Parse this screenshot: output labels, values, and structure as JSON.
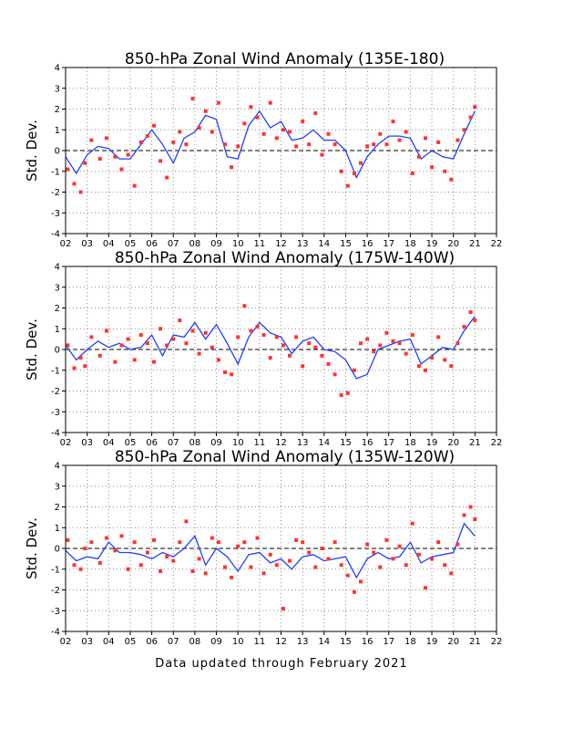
{
  "chart_data": [
    {
      "type": "scatter",
      "title": "850-hPa Zonal Wind Anomaly (135E-180)",
      "ylabel": "Std. Dev.",
      "xlabel": "",
      "x_tick_labels": [
        "02",
        "03",
        "04",
        "05",
        "06",
        "07",
        "08",
        "09",
        "10",
        "11",
        "12",
        "13",
        "14",
        "15",
        "16",
        "17",
        "18",
        "19",
        "20",
        "21",
        "22"
      ],
      "xlim": [
        2002,
        2022
      ],
      "ylim": [
        -4,
        4
      ],
      "y_ticks": [
        -4,
        -3,
        -2,
        -1,
        0,
        1,
        2,
        3,
        4
      ],
      "grid": true,
      "zero_line": "dashed",
      "colors": {
        "running_mean": "#1f3fff",
        "monthly": "#ff3333"
      },
      "running_mean": {
        "x": [
          2002.0,
          2002.5,
          2003.0,
          2003.5,
          2004.0,
          2004.5,
          2005.0,
          2005.5,
          2006.0,
          2006.5,
          2007.0,
          2007.5,
          2008.0,
          2008.5,
          2009.0,
          2009.5,
          2010.0,
          2010.5,
          2011.0,
          2011.5,
          2012.0,
          2012.5,
          2013.0,
          2013.5,
          2014.0,
          2014.5,
          2015.0,
          2015.5,
          2016.0,
          2016.5,
          2017.0,
          2017.5,
          2018.0,
          2018.5,
          2019.0,
          2019.5,
          2020.0,
          2020.5,
          2021.0
        ],
        "y": [
          -0.3,
          -1.1,
          -0.2,
          0.2,
          0.1,
          -0.4,
          -0.4,
          0.3,
          1.0,
          0.3,
          -0.6,
          0.6,
          0.9,
          1.7,
          1.5,
          -0.3,
          -0.4,
          1.2,
          1.9,
          1.1,
          1.4,
          0.5,
          0.6,
          1.0,
          0.5,
          0.5,
          0.0,
          -1.3,
          -0.3,
          0.3,
          0.7,
          0.7,
          0.6,
          -0.4,
          0.0,
          -0.3,
          -0.4,
          0.8,
          1.9
        ]
      },
      "monthly": {
        "x": [
          2002.1,
          2002.4,
          2002.7,
          2002.9,
          2003.2,
          2003.6,
          2003.9,
          2004.3,
          2004.6,
          2004.9,
          2005.2,
          2005.5,
          2005.8,
          2006.1,
          2006.4,
          2006.7,
          2007.0,
          2007.3,
          2007.6,
          2007.9,
          2008.2,
          2008.5,
          2008.8,
          2009.1,
          2009.4,
          2009.7,
          2010.0,
          2010.3,
          2010.6,
          2010.9,
          2011.2,
          2011.5,
          2011.8,
          2012.1,
          2012.4,
          2012.7,
          2013.0,
          2013.3,
          2013.6,
          2013.9,
          2014.2,
          2014.5,
          2014.8,
          2015.1,
          2015.4,
          2015.7,
          2016.0,
          2016.3,
          2016.6,
          2016.9,
          2017.2,
          2017.5,
          2017.8,
          2018.1,
          2018.4,
          2018.7,
          2019.0,
          2019.3,
          2019.6,
          2019.9,
          2020.2,
          2020.5,
          2020.8,
          2021.0
        ],
        "y": [
          -0.9,
          -1.6,
          -2.0,
          -0.6,
          0.5,
          -0.4,
          0.6,
          -0.3,
          -0.9,
          -0.2,
          -1.7,
          0.4,
          0.7,
          1.2,
          -0.5,
          -1.3,
          0.4,
          0.9,
          0.3,
          2.5,
          1.1,
          1.9,
          0.9,
          2.3,
          0.3,
          -0.8,
          0.2,
          1.3,
          2.1,
          1.6,
          0.8,
          2.3,
          0.6,
          1.0,
          0.9,
          0.2,
          1.4,
          0.3,
          1.8,
          -0.2,
          0.8,
          0.3,
          -1.0,
          -1.7,
          -1.1,
          -0.6,
          0.2,
          0.3,
          0.8,
          0.3,
          1.4,
          0.5,
          0.9,
          -1.1,
          -0.3,
          0.6,
          -0.8,
          0.4,
          -1.0,
          -1.4,
          0.5,
          1.0,
          1.6,
          2.1
        ]
      }
    },
    {
      "type": "scatter",
      "title": "850-hPa Zonal Wind Anomaly (175W-140W)",
      "ylabel": "Std. Dev.",
      "xlabel": "",
      "x_tick_labels": [
        "02",
        "03",
        "04",
        "05",
        "06",
        "07",
        "08",
        "09",
        "10",
        "11",
        "12",
        "13",
        "14",
        "15",
        "16",
        "17",
        "18",
        "19",
        "20",
        "21",
        "22"
      ],
      "xlim": [
        2002,
        2022
      ],
      "ylim": [
        -4,
        4
      ],
      "y_ticks": [
        -4,
        -3,
        -2,
        -1,
        0,
        1,
        2,
        3,
        4
      ],
      "grid": true,
      "zero_line": "dashed",
      "colors": {
        "running_mean": "#1f3fff",
        "monthly": "#ff3333"
      },
      "running_mean": {
        "x": [
          2002.0,
          2002.5,
          2003.0,
          2003.5,
          2004.0,
          2004.5,
          2005.0,
          2005.5,
          2006.0,
          2006.5,
          2007.0,
          2007.5,
          2008.0,
          2008.5,
          2009.0,
          2009.5,
          2010.0,
          2010.5,
          2011.0,
          2011.5,
          2012.0,
          2012.5,
          2013.0,
          2013.5,
          2014.0,
          2014.5,
          2015.0,
          2015.5,
          2016.0,
          2016.5,
          2017.0,
          2017.5,
          2018.0,
          2018.5,
          2019.0,
          2019.5,
          2020.0,
          2020.5,
          2021.0
        ],
        "y": [
          0.2,
          -0.5,
          0.0,
          0.4,
          0.1,
          0.3,
          0.0,
          0.1,
          0.7,
          -0.3,
          0.7,
          0.6,
          1.3,
          0.5,
          1.2,
          0.3,
          -0.7,
          0.6,
          1.3,
          0.8,
          0.6,
          -0.2,
          0.4,
          0.6,
          0.0,
          -0.1,
          -0.5,
          -1.4,
          -1.2,
          0.0,
          0.2,
          0.4,
          0.5,
          -0.7,
          -0.3,
          0.1,
          0.0,
          0.9,
          1.6
        ]
      },
      "monthly": {
        "x": [
          2002.1,
          2002.4,
          2002.7,
          2002.9,
          2003.2,
          2003.6,
          2003.9,
          2004.3,
          2004.6,
          2004.9,
          2005.2,
          2005.5,
          2005.8,
          2006.1,
          2006.4,
          2006.7,
          2007.0,
          2007.3,
          2007.6,
          2007.9,
          2008.2,
          2008.5,
          2008.8,
          2009.1,
          2009.4,
          2009.7,
          2010.0,
          2010.3,
          2010.6,
          2010.9,
          2011.2,
          2011.5,
          2011.8,
          2012.1,
          2012.4,
          2012.7,
          2013.0,
          2013.3,
          2013.6,
          2013.9,
          2014.2,
          2014.5,
          2014.8,
          2015.1,
          2015.4,
          2015.7,
          2016.0,
          2016.3,
          2016.6,
          2016.9,
          2017.2,
          2017.5,
          2017.8,
          2018.1,
          2018.4,
          2018.7,
          2019.0,
          2019.3,
          2019.6,
          2019.9,
          2020.2,
          2020.5,
          2020.8,
          2021.0
        ],
        "y": [
          0.2,
          -0.9,
          -0.4,
          -0.8,
          0.6,
          -0.3,
          0.9,
          -0.6,
          0.2,
          0.5,
          -0.5,
          0.7,
          0.3,
          -0.6,
          1.0,
          0.2,
          0.5,
          1.4,
          0.3,
          0.9,
          -0.2,
          0.8,
          0.1,
          -0.5,
          -1.1,
          -1.2,
          0.6,
          2.1,
          0.9,
          1.1,
          0.7,
          -0.4,
          0.6,
          0.2,
          -0.3,
          0.6,
          -0.8,
          0.3,
          0.1,
          -0.3,
          -0.7,
          -1.2,
          -2.2,
          -2.1,
          -1.0,
          0.3,
          0.5,
          -0.1,
          0.2,
          0.8,
          0.4,
          0.3,
          -0.2,
          0.7,
          -0.8,
          -1.0,
          -0.4,
          0.6,
          -0.5,
          -0.8,
          0.3,
          1.1,
          1.8,
          1.4
        ]
      }
    },
    {
      "type": "scatter",
      "title": "850-hPa Zonal Wind Anomaly (135W-120W)",
      "ylabel": "Std. Dev.",
      "xlabel": "",
      "x_tick_labels": [
        "02",
        "03",
        "04",
        "05",
        "06",
        "07",
        "08",
        "09",
        "10",
        "11",
        "12",
        "13",
        "14",
        "15",
        "16",
        "17",
        "18",
        "19",
        "20",
        "21",
        "22"
      ],
      "xlim": [
        2002,
        2022
      ],
      "ylim": [
        -4,
        4
      ],
      "y_ticks": [
        -4,
        -3,
        -2,
        -1,
        0,
        1,
        2,
        3,
        4
      ],
      "grid": true,
      "zero_line": "dashed",
      "colors": {
        "running_mean": "#1f3fff",
        "monthly": "#ff3333"
      },
      "running_mean": {
        "x": [
          2002.0,
          2002.5,
          2003.0,
          2003.5,
          2004.0,
          2004.5,
          2005.0,
          2005.5,
          2006.0,
          2006.5,
          2007.0,
          2007.5,
          2008.0,
          2008.5,
          2009.0,
          2009.5,
          2010.0,
          2010.5,
          2011.0,
          2011.5,
          2012.0,
          2012.5,
          2013.0,
          2013.5,
          2014.0,
          2014.5,
          2015.0,
          2015.5,
          2016.0,
          2016.5,
          2017.0,
          2017.5,
          2018.0,
          2018.5,
          2019.0,
          2019.5,
          2020.0,
          2020.5,
          2021.0
        ],
        "y": [
          -0.1,
          -0.6,
          -0.4,
          -0.5,
          0.3,
          -0.2,
          -0.2,
          -0.3,
          -0.5,
          -0.2,
          -0.4,
          0.0,
          0.6,
          -0.8,
          0.0,
          -0.4,
          -1.1,
          -0.3,
          -0.2,
          -0.7,
          -0.5,
          -1.0,
          -0.4,
          -0.3,
          -0.6,
          -0.5,
          -0.4,
          -1.4,
          -0.5,
          -0.2,
          -0.5,
          -0.4,
          0.3,
          -0.7,
          -0.4,
          -0.3,
          -0.2,
          1.2,
          0.6
        ]
      },
      "monthly": {
        "x": [
          2002.1,
          2002.4,
          2002.7,
          2002.9,
          2003.2,
          2003.6,
          2003.9,
          2004.3,
          2004.6,
          2004.9,
          2005.2,
          2005.5,
          2005.8,
          2006.1,
          2006.4,
          2006.7,
          2007.0,
          2007.3,
          2007.6,
          2007.9,
          2008.2,
          2008.5,
          2008.8,
          2009.1,
          2009.4,
          2009.7,
          2010.0,
          2010.3,
          2010.6,
          2010.9,
          2011.2,
          2011.5,
          2011.8,
          2012.1,
          2012.4,
          2012.7,
          2013.0,
          2013.3,
          2013.6,
          2013.9,
          2014.2,
          2014.5,
          2014.8,
          2015.1,
          2015.4,
          2015.7,
          2016.0,
          2016.3,
          2016.6,
          2016.9,
          2017.2,
          2017.5,
          2017.8,
          2018.1,
          2018.4,
          2018.7,
          2019.0,
          2019.3,
          2019.6,
          2019.9,
          2020.2,
          2020.5,
          2020.8,
          2021.0
        ],
        "y": [
          0.4,
          -0.8,
          -1.0,
          0.0,
          0.3,
          -0.7,
          0.5,
          -0.1,
          0.6,
          -1.0,
          0.3,
          -0.8,
          -0.2,
          0.4,
          -1.1,
          -0.4,
          -0.6,
          0.3,
          1.3,
          -1.1,
          -0.5,
          -1.2,
          0.5,
          0.3,
          -0.9,
          -1.4,
          0.1,
          0.3,
          -0.9,
          0.5,
          -1.2,
          -0.3,
          -0.8,
          -2.9,
          -0.6,
          0.4,
          0.3,
          -0.2,
          -0.9,
          0.0,
          -0.5,
          0.3,
          -0.8,
          -1.3,
          -2.1,
          -1.6,
          0.2,
          -0.2,
          -0.9,
          0.4,
          -0.5,
          0.1,
          -0.8,
          1.2,
          -0.3,
          -1.9,
          -0.5,
          0.3,
          -0.8,
          -1.2,
          0.2,
          1.6,
          2.0,
          1.4
        ]
      }
    }
  ],
  "footer": "Data updated through February 2021"
}
